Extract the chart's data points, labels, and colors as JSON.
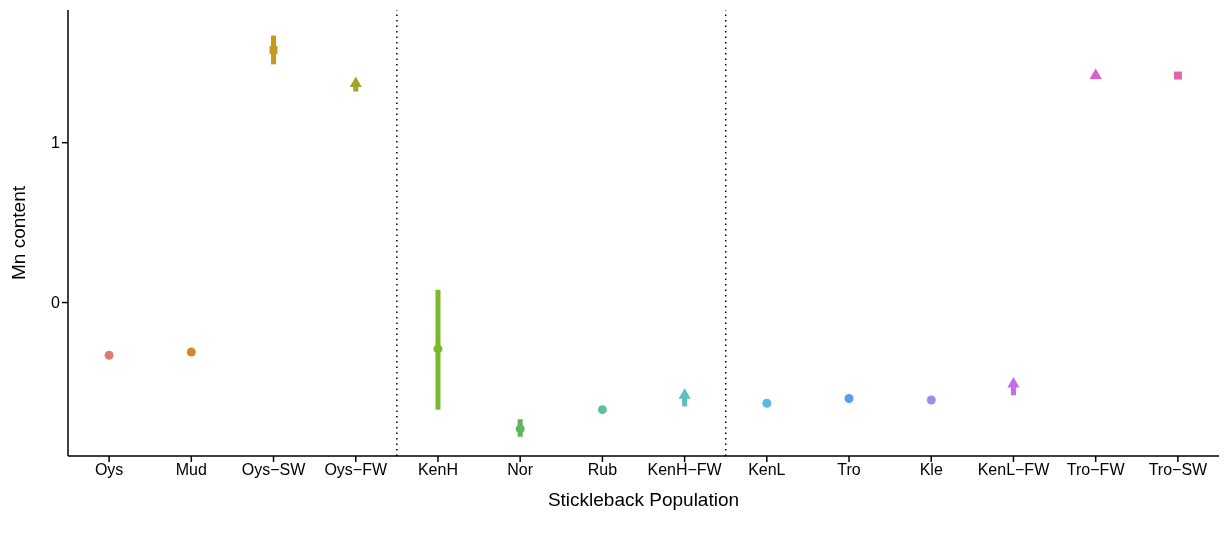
{
  "chart_data": {
    "type": "scatter",
    "xlabel": "Stickleback Population",
    "ylabel": "Mn content",
    "categories": [
      "Oys",
      "Mud",
      "Oys−SW",
      "Oys−FW",
      "KenH",
      "Nor",
      "Rub",
      "KenH−FW",
      "KenL",
      "Tro",
      "Kle",
      "KenL−FW",
      "Tro−FW",
      "Tro−SW"
    ],
    "series": [
      {
        "marker": "circle",
        "values": [
          -0.33,
          -0.31,
          null,
          null,
          -0.29,
          -0.79,
          -0.67,
          null,
          -0.63,
          -0.6,
          -0.61,
          null,
          null,
          null
        ],
        "colors": [
          "#e07b73",
          "#d2891e",
          null,
          null,
          "#7cb82c",
          "#5cb85a",
          "#5cc49a",
          null,
          "#5bb8e8",
          "#559ef0",
          "#9a8cf0",
          null,
          null,
          null
        ],
        "errors": [
          null,
          null,
          null,
          null,
          [
            -0.67,
            0.08
          ],
          [
            -0.84,
            -0.73
          ],
          null,
          null,
          null,
          null,
          null,
          null,
          null,
          null
        ]
      },
      {
        "marker": "square",
        "values": [
          null,
          null,
          1.58,
          null,
          null,
          null,
          null,
          null,
          null,
          null,
          null,
          null,
          null,
          1.42
        ],
        "colors": [
          null,
          null,
          "#c49a1c",
          null,
          null,
          null,
          null,
          null,
          null,
          null,
          null,
          null,
          null,
          "#e066a8"
        ],
        "errors": [
          null,
          null,
          [
            1.49,
            1.67
          ],
          null,
          null,
          null,
          null,
          null,
          null,
          null,
          null,
          null,
          null,
          null
        ]
      },
      {
        "marker": "triangle",
        "values": [
          null,
          null,
          null,
          1.37,
          null,
          null,
          null,
          -0.58,
          null,
          null,
          null,
          -0.51,
          1.42,
          null
        ],
        "colors": [
          null,
          null,
          null,
          "#a3a52a",
          null,
          null,
          null,
          "#5cbfc0",
          null,
          null,
          null,
          "#c06ef0",
          "#dc5ed0",
          null
        ],
        "errors": [
          null,
          null,
          null,
          [
            1.32,
            1.37
          ],
          null,
          null,
          null,
          [
            -0.65,
            -0.58
          ],
          null,
          null,
          null,
          [
            -0.58,
            -0.51
          ],
          null,
          null
        ]
      }
    ],
    "ylim": [
      -0.96,
      1.83
    ],
    "yticks": [
      0,
      1
    ],
    "grid": false
  }
}
